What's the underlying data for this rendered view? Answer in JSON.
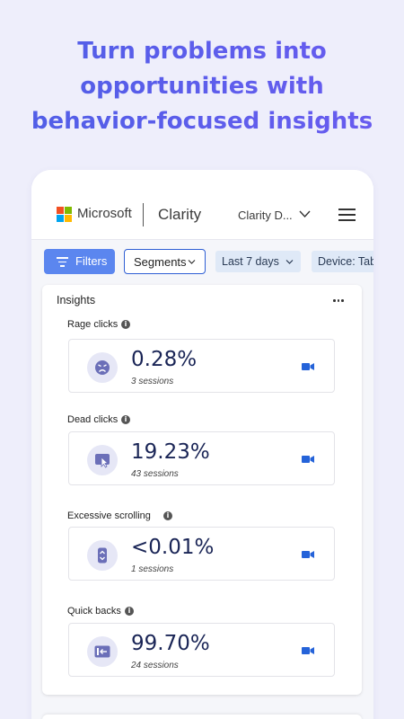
{
  "headline": {
    "line1": "Turn problems into",
    "line2": "opportunities with",
    "line3": "behavior-focused insights"
  },
  "topbar": {
    "brand": "Microsoft",
    "product": "Clarity",
    "project": "Clarity D...",
    "icons": [
      "microsoft-logo",
      "chevron-down-icon",
      "hamburger-menu-icon"
    ]
  },
  "filterbar": {
    "filters_label": "Filters",
    "segments_label": "Segments",
    "date_label": "Last 7 days",
    "device_label": "Device: Tab"
  },
  "colors": {
    "accent": "#5b86ef",
    "headline_gradient_start": "#4f5ee6",
    "metric_value": "#1a2556",
    "video_icon": "#2563d9"
  },
  "insights": {
    "title": "Insights",
    "metrics": [
      {
        "label": "Rage clicks",
        "value": "0.28%",
        "sessions": "3 sessions",
        "icon": "angry-face-icon"
      },
      {
        "label": "Dead clicks",
        "value": "19.23%",
        "sessions": "43 sessions",
        "icon": "dead-click-cursor-icon"
      },
      {
        "label": "Excessive scrolling",
        "value": "<0.01%",
        "sessions": "1 sessions",
        "icon": "scroll-icon"
      },
      {
        "label": "Quick backs",
        "value": "99.70%",
        "sessions": "24 sessions",
        "icon": "back-arrow-icon"
      }
    ]
  }
}
